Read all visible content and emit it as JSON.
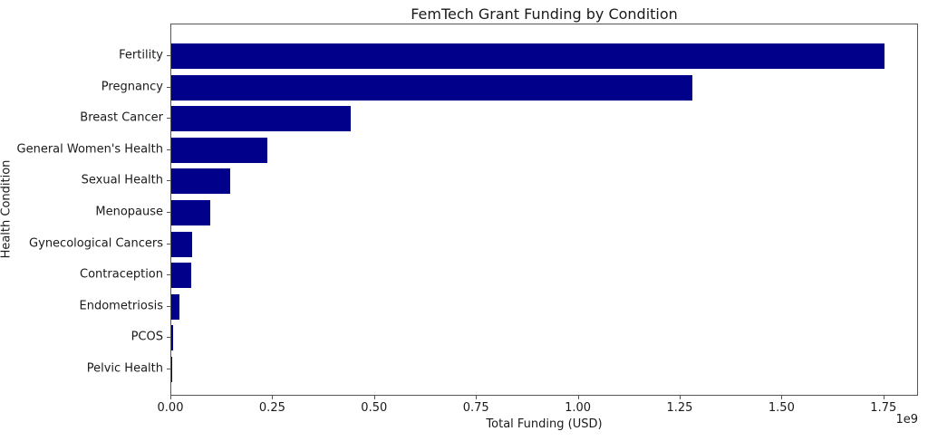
{
  "chart_data": {
    "type": "bar",
    "orientation": "horizontal",
    "title": "FemTech Grant Funding by Condition",
    "xlabel": "Total Funding (USD)",
    "ylabel": "Health Condition",
    "x_offset_label": "1e9",
    "categories": [
      "Fertility",
      "Pregnancy",
      "Breast Cancer",
      "General Women's Health",
      "Sexual Health",
      "Menopause",
      "Gynecological Cancers",
      "Contraception",
      "Endometriosis",
      "PCOS",
      "Pelvic Health"
    ],
    "values": [
      1750000000,
      1280000000,
      440000000,
      235000000,
      145000000,
      95000000,
      52000000,
      48000000,
      20000000,
      5000000,
      1000000
    ],
    "xlim": [
      0,
      1835000000
    ],
    "x_ticks": [
      0,
      250000000,
      500000000,
      750000000,
      1000000000,
      1250000000,
      1500000000,
      1750000000
    ],
    "x_tick_labels": [
      "0.00",
      "0.25",
      "0.50",
      "0.75",
      "1.00",
      "1.25",
      "1.50",
      "1.75"
    ],
    "bar_color": "#00008B",
    "background_color": "#ffffff",
    "grid": false
  }
}
